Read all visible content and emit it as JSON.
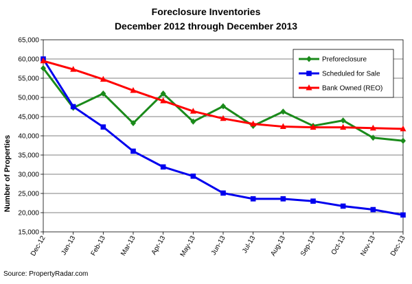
{
  "chart_data": {
    "type": "line",
    "title_lines": [
      "Foreclosure Inventories",
      "December 2012 through December 2013"
    ],
    "xlabel": "",
    "ylabel": "Number of Properties",
    "categories": [
      "Dec-12",
      "Jan-13",
      "Feb-13",
      "Mar-13",
      "Apr-13",
      "May-13",
      "Jun-13",
      "Jul-13",
      "Aug-13",
      "Sep-13",
      "Oct-13",
      "Nov-13",
      "Dec-13"
    ],
    "ylim": [
      15000,
      65000
    ],
    "yticks": [
      15000,
      20000,
      25000,
      30000,
      35000,
      40000,
      45000,
      50000,
      55000,
      60000,
      65000
    ],
    "ytick_labels": [
      "15,000",
      "20,000",
      "25,000",
      "30,000",
      "35,000",
      "40,000",
      "45,000",
      "50,000",
      "55,000",
      "60,000",
      "65,000"
    ],
    "grid": true,
    "legend_position": "top-right",
    "series": [
      {
        "name": "Preforeclosure",
        "color": "#1a8a1a",
        "marker": "diamond",
        "values": [
          57600,
          47300,
          51000,
          43300,
          51000,
          43700,
          47700,
          42600,
          46300,
          42600,
          44000,
          39500,
          38700
        ]
      },
      {
        "name": "Scheduled for Sale",
        "color": "#0000ee",
        "marker": "square",
        "values": [
          60000,
          47600,
          42300,
          36000,
          31900,
          29500,
          25100,
          23600,
          23600,
          23000,
          21700,
          20800,
          19400
        ]
      },
      {
        "name": "Bank Owned (REO)",
        "color": "#ff0000",
        "marker": "triangle",
        "values": [
          59500,
          57300,
          54700,
          51800,
          49100,
          46400,
          44500,
          43100,
          42400,
          42200,
          42200,
          42000,
          41800
        ]
      }
    ]
  },
  "source": "Source: PropertyRadar.com"
}
